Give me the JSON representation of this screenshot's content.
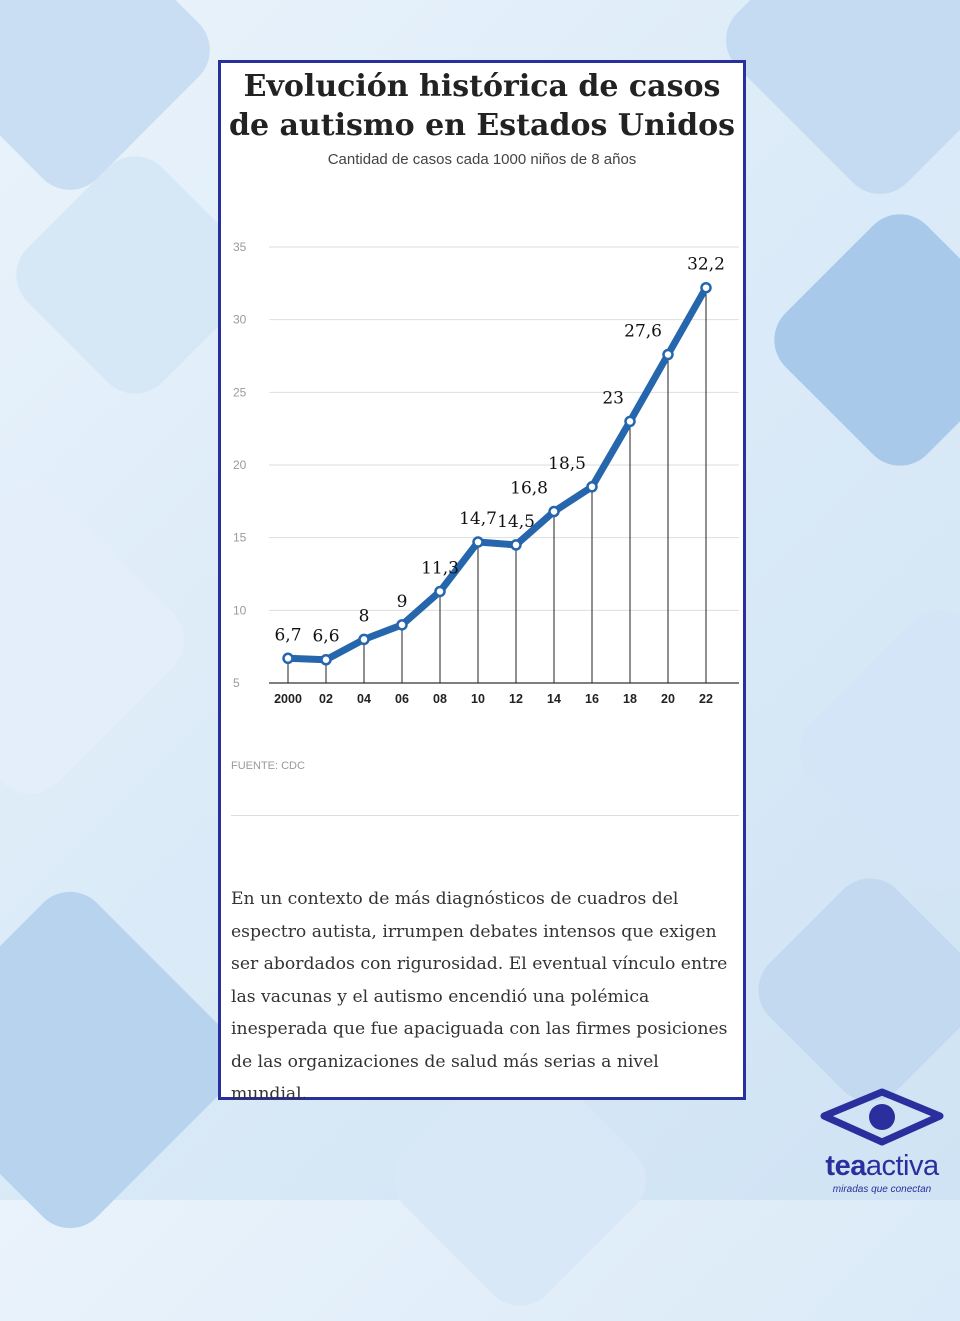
{
  "chart_data": {
    "type": "line",
    "title": "Evolución histórica de casos de autismo en Estados Unidos",
    "subtitle": "Cantidad de casos cada 1000 niños de 8 años",
    "categories": [
      "2000",
      "02",
      "04",
      "06",
      "08",
      "10",
      "12",
      "14",
      "16",
      "18",
      "20",
      "22"
    ],
    "values": [
      6.7,
      6.6,
      8,
      9,
      11.3,
      14.7,
      14.5,
      16.8,
      18.5,
      23,
      27.6,
      32.2
    ],
    "data_labels": [
      "6,7",
      "6,6",
      "8",
      "9",
      "11,3",
      "14,7",
      "14,5",
      "16,8",
      "18,5",
      "23",
      "27,6",
      "32,2"
    ],
    "y_ticks": [
      "35",
      "30",
      "25",
      "20",
      "15",
      "10",
      "5"
    ],
    "ylim": [
      5,
      35
    ],
    "grid": true,
    "colors": {
      "line": "#2566ad",
      "marker_fill": "#ffffff"
    }
  },
  "source": "FUENTE: CDC",
  "body_text": "En un contexto de más diagnósticos de cuadros del espectro autista, irrumpen debates intensos que exigen ser abordados con rigurosidad. El eventual vínculo entre las vacunas y el autismo encendió una polémica inesperada que fue apaciguada con las firmes posiciones de las organizaciones de salud más serias a nivel mundial.",
  "brand": {
    "name_bold": "tea",
    "name_regular": "activa",
    "tagline": "miradas que conectan",
    "color": "#2a2f9e"
  }
}
